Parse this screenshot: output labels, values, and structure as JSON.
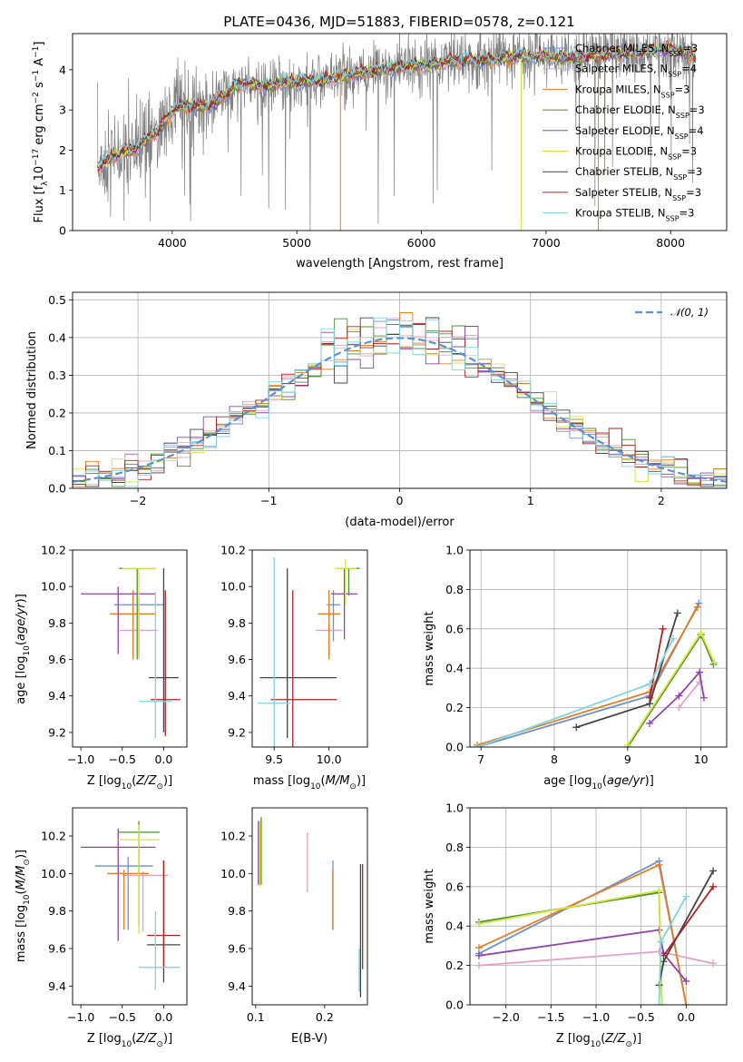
{
  "title": "PLATE=0436, MJD=51883, FIBERID=0578, z=0.121",
  "models": [
    {
      "name": "Chabrier MILES, N_SSP=3",
      "label": "Chabrier MILES, N",
      "sub": "SSP",
      "suffix": "=3",
      "color": "#6e8fd6"
    },
    {
      "name": "Salpeter MILES, N_SSP=4",
      "label": "Salpeter MILES, N",
      "sub": "SSP",
      "suffix": "=4",
      "color": "#e6a0c4"
    },
    {
      "name": "Kroupa MILES, N_SSP=3",
      "label": "Kroupa MILES, N",
      "sub": "SSP",
      "suffix": "=3",
      "color": "#e67e22"
    },
    {
      "name": "Chabrier ELODIE, N_SSP=3",
      "label": "Chabrier ELODIE, N",
      "sub": "SSP",
      "suffix": "=3",
      "color": "#4e8f2f"
    },
    {
      "name": "Salpeter ELODIE, N_SSP=4",
      "label": "Salpeter ELODIE, N",
      "sub": "SSP",
      "suffix": "=4",
      "color": "#8e44ad"
    },
    {
      "name": "Kroupa ELODIE, N_SSP=3",
      "label": "Kroupa ELODIE, N",
      "sub": "SSP",
      "suffix": "=3",
      "color": "#d4e83c"
    },
    {
      "name": "Chabrier STELIB, N_SSP=3",
      "label": "Chabrier STELIB, N",
      "sub": "SSP",
      "suffix": "=3",
      "color": "#444444"
    },
    {
      "name": "Salpeter STELIB, N_SSP=3",
      "label": "Salpeter STELIB, N",
      "sub": "SSP",
      "suffix": "=3",
      "color": "#b22222"
    },
    {
      "name": "Kroupa STELIB, N_SSP=3",
      "label": "Kroupa STELIB, N",
      "sub": "SSP",
      "suffix": "=3",
      "color": "#7fd6e0"
    }
  ],
  "chart_data": [
    {
      "id": "spectrum",
      "type": "line",
      "xlabel": "wavelength [Angstrom, rest frame]",
      "ylabel": "Flux [f_λ 10^-17 erg cm^-2 s^-1 A^-1]",
      "xlim": [
        3200,
        8450
      ],
      "ylim": [
        0,
        4.9
      ],
      "xticks": [
        4000,
        5000,
        6000,
        7000,
        8000
      ],
      "yticks": [
        0,
        1,
        2,
        3,
        4
      ],
      "data_color": "#808080",
      "data_range": [
        3400,
        8200
      ],
      "model_continuum": {
        "x": [
          3400,
          3500,
          3600,
          3700,
          3800,
          3900,
          4000,
          4100,
          4200,
          4300,
          4400,
          4500,
          4600,
          4700,
          4800,
          4900,
          5000,
          5200,
          5400,
          5600,
          5800,
          6000,
          6200,
          6400,
          6600,
          6800,
          7000,
          7200,
          7400,
          7600,
          7800,
          8000,
          8200
        ],
        "y": [
          1.55,
          1.8,
          1.95,
          2.0,
          2.3,
          2.5,
          3.0,
          3.1,
          3.1,
          3.1,
          3.3,
          3.6,
          3.65,
          3.6,
          3.6,
          3.7,
          3.7,
          3.75,
          3.85,
          3.95,
          4.05,
          4.1,
          4.2,
          4.25,
          4.25,
          4.35,
          4.3,
          4.3,
          4.35,
          4.4,
          4.45,
          4.55,
          4.35
        ]
      },
      "legend_loc": "upper right"
    },
    {
      "id": "residuals",
      "type": "histogram",
      "xlabel": "(data-model)/error",
      "ylabel": "Normed distribution",
      "xlim": [
        -2.5,
        2.5
      ],
      "ylim": [
        0,
        0.52
      ],
      "xticks": [
        -2,
        -1,
        0,
        1,
        2
      ],
      "yticks": [
        0.0,
        0.1,
        0.2,
        0.3,
        0.4,
        0.5
      ],
      "bin_width": 0.1,
      "bins_start": -2.5,
      "reference_curve": {
        "name": "N(0,1)",
        "label": "𝒩(0, 1)",
        "mu": 0,
        "sigma": 1,
        "color": "#5b8fd6"
      },
      "grid": true
    },
    {
      "id": "age_vs_Z",
      "type": "errorbar",
      "xlabel": "Z [log10(Z/Z⊙)]",
      "ylabel": "age [log10(age/yr)]",
      "xlim": [
        -1.1,
        0.28
      ],
      "ylim": [
        9.12,
        10.2
      ],
      "xticks": [
        -1.0,
        -0.5,
        0.0
      ],
      "yticks": [
        9.2,
        9.4,
        9.6,
        9.8,
        10.0,
        10.2
      ],
      "points": [
        {
          "m": 0,
          "x": -0.3,
          "xerr": [
            0.3,
            0.3
          ],
          "y": 9.9,
          "yerr": [
            0.29,
            0.04
          ]
        },
        {
          "m": 1,
          "x": -0.3,
          "xerr": [
            0.23,
            0.23
          ],
          "y": 9.76,
          "yerr": [
            0.14,
            0.14
          ]
        },
        {
          "m": 2,
          "x": -0.37,
          "xerr": [
            0.28,
            0.28
          ],
          "y": 9.85,
          "yerr": [
            0.25,
            0.13
          ]
        },
        {
          "m": 3,
          "x": -0.32,
          "xerr": [
            0.22,
            0.22
          ],
          "y": 10.1,
          "yerr": [
            0.5,
            0.0
          ]
        },
        {
          "m": 4,
          "x": -0.55,
          "xerr": [
            0.45,
            0.45
          ],
          "y": 9.96,
          "yerr": [
            0.33,
            0.04
          ]
        },
        {
          "m": 5,
          "x": -0.3,
          "xerr": [
            0.2,
            0.2
          ],
          "y": 10.1,
          "yerr": [
            0.5,
            0.0
          ]
        },
        {
          "m": 6,
          "x": 0.0,
          "xerr": [
            0.18,
            0.18
          ],
          "y": 9.5,
          "yerr": [
            0.3,
            0.6
          ]
        },
        {
          "m": 7,
          "x": 0.02,
          "xerr": [
            0.18,
            0.18
          ],
          "y": 9.38,
          "yerr": [
            0.2,
            0.6
          ]
        },
        {
          "m": 8,
          "x": -0.1,
          "xerr": [
            0.2,
            0.2
          ],
          "y": 9.37,
          "yerr": [
            0.2,
            0.6
          ]
        }
      ]
    },
    {
      "id": "age_vs_mass",
      "type": "errorbar",
      "xlabel": "mass [log10(M/M⊙)]",
      "ylabel": "",
      "xlim": [
        9.3,
        10.35
      ],
      "ylim": [
        9.12,
        10.2
      ],
      "xticks": [
        9.5,
        10.0
      ],
      "yticks": [
        9.2,
        9.4,
        9.6,
        9.8,
        10.0,
        10.2
      ],
      "points": [
        {
          "m": 0,
          "x": 10.04,
          "xerr": [
            0.06,
            0.06
          ],
          "y": 9.9,
          "yerr": [
            0.2,
            0.08
          ]
        },
        {
          "m": 1,
          "x": 10.0,
          "xerr": [
            0.12,
            0.12
          ],
          "y": 9.76,
          "yerr": [
            0.14,
            0.14
          ]
        },
        {
          "m": 2,
          "x": 10.0,
          "xerr": [
            0.1,
            0.1
          ],
          "y": 9.85,
          "yerr": [
            0.25,
            0.13
          ]
        },
        {
          "m": 3,
          "x": 10.18,
          "xerr": [
            0.1,
            0.1
          ],
          "y": 10.1,
          "yerr": [
            0.15,
            0.0
          ]
        },
        {
          "m": 4,
          "x": 10.14,
          "xerr": [
            0.12,
            0.12
          ],
          "y": 9.96,
          "yerr": [
            0.25,
            0.14
          ]
        },
        {
          "m": 5,
          "x": 10.15,
          "xerr": [
            0.1,
            0.1
          ],
          "y": 10.1,
          "yerr": [
            0.2,
            0.05
          ]
        },
        {
          "m": 6,
          "x": 9.62,
          "xerr": [
            0.25,
            0.45
          ],
          "y": 9.5,
          "yerr": [
            0.33,
            0.6
          ]
        },
        {
          "m": 7,
          "x": 9.67,
          "xerr": [
            0.2,
            0.4
          ],
          "y": 9.38,
          "yerr": [
            0.3,
            0.6
          ]
        },
        {
          "m": 8,
          "x": 9.5,
          "xerr": [
            0.15,
            0.15
          ],
          "y": 9.36,
          "yerr": [
            0.3,
            0.8
          ]
        }
      ]
    },
    {
      "id": "mass_weight_vs_age",
      "type": "line",
      "xlabel": "age [log10(age/yr)]",
      "ylabel": "mass weight",
      "xlim": [
        6.85,
        10.35
      ],
      "ylim": [
        0,
        1.0
      ],
      "xticks": [
        7,
        8,
        9,
        10
      ],
      "yticks": [
        0.0,
        0.2,
        0.4,
        0.6,
        0.8,
        1.0
      ],
      "grid": true,
      "series": [
        {
          "m": 0,
          "x": [
            6.95,
            9.3,
            9.97
          ],
          "y": [
            0.0,
            0.26,
            0.73
          ]
        },
        {
          "m": 1,
          "x": [
            9.7,
            9.98
          ],
          "y": [
            0.2,
            0.33
          ]
        },
        {
          "m": 2,
          "x": [
            6.95,
            9.3,
            9.95
          ],
          "y": [
            0.01,
            0.28,
            0.71
          ]
        },
        {
          "m": 3,
          "x": [
            9.0,
            10.0,
            10.17
          ],
          "y": [
            0.0,
            0.57,
            0.42
          ]
        },
        {
          "m": 4,
          "x": [
            9.3,
            9.7,
            9.98,
            10.04
          ],
          "y": [
            0.12,
            0.26,
            0.38,
            0.25
          ]
        },
        {
          "m": 5,
          "x": [
            9.0,
            10.0,
            10.18
          ],
          "y": [
            0.01,
            0.58,
            0.43
          ]
        },
        {
          "m": 6,
          "x": [
            8.3,
            9.3,
            9.68
          ],
          "y": [
            0.1,
            0.22,
            0.68
          ]
        },
        {
          "m": 7,
          "x": [
            9.3,
            9.48
          ],
          "y": [
            0.25,
            0.6
          ]
        },
        {
          "m": 8,
          "x": [
            6.95,
            9.3,
            9.62
          ],
          "y": [
            0.0,
            0.32,
            0.55
          ]
        }
      ]
    },
    {
      "id": "mass_vs_Z",
      "type": "errorbar",
      "xlabel": "Z [log10(Z/Z⊙)]",
      "ylabel": "mass [log10(M/M⊙)]",
      "xlim": [
        -1.1,
        0.28
      ],
      "ylim": [
        9.3,
        10.35
      ],
      "xticks": [
        -1.0,
        -0.5,
        0.0
      ],
      "yticks": [
        9.4,
        9.6,
        9.8,
        10.0,
        10.2
      ],
      "points": [
        {
          "m": 0,
          "x": -0.43,
          "xerr": [
            0.4,
            0.3
          ],
          "y": 10.04,
          "yerr": [
            0.34,
            0.05
          ]
        },
        {
          "m": 1,
          "x": -0.25,
          "xerr": [
            0.25,
            0.3
          ],
          "y": 9.99,
          "yerr": [
            0.3,
            0.02
          ]
        },
        {
          "m": 2,
          "x": -0.48,
          "xerr": [
            0.2,
            0.3
          ],
          "y": 10.0,
          "yerr": [
            0.3,
            0.02
          ]
        },
        {
          "m": 3,
          "x": -0.3,
          "xerr": [
            0.25,
            0.25
          ],
          "y": 10.22,
          "yerr": [
            0.5,
            0.06
          ]
        },
        {
          "m": 4,
          "x": -0.55,
          "xerr": [
            0.45,
            0.45
          ],
          "y": 10.14,
          "yerr": [
            0.5,
            0.1
          ]
        },
        {
          "m": 5,
          "x": -0.3,
          "xerr": [
            0.25,
            0.25
          ],
          "y": 10.18,
          "yerr": [
            0.5,
            0.08
          ]
        },
        {
          "m": 6,
          "x": 0.0,
          "xerr": [
            0.2,
            0.2
          ],
          "y": 9.62,
          "yerr": [
            0.2,
            0.45
          ]
        },
        {
          "m": 7,
          "x": 0.0,
          "xerr": [
            0.2,
            0.2
          ],
          "y": 9.67,
          "yerr": [
            0.18,
            0.4
          ]
        },
        {
          "m": 8,
          "x": -0.1,
          "xerr": [
            0.2,
            0.3
          ],
          "y": 9.5,
          "yerr": [
            0.12,
            0.3
          ]
        }
      ]
    },
    {
      "id": "mass_vs_EBV",
      "type": "errorbar",
      "xlabel": "E(B-V)",
      "ylabel": "",
      "xlim": [
        0.095,
        0.262
      ],
      "ylim": [
        9.3,
        10.35
      ],
      "xticks": [
        0.1,
        0.2
      ],
      "yticks": [
        9.4,
        9.6,
        9.8,
        10.0,
        10.2
      ],
      "points": [
        {
          "m": 0,
          "x": 0.212,
          "xerr": [
            0,
            0
          ],
          "y": 10.04,
          "yerr": [
            0.34,
            0.03
          ]
        },
        {
          "m": 1,
          "x": 0.175,
          "xerr": [
            0,
            0
          ],
          "y": 10.0,
          "yerr": [
            0.1,
            0.22
          ]
        },
        {
          "m": 2,
          "x": 0.212,
          "xerr": [
            0,
            0
          ],
          "y": 10.0,
          "yerr": [
            0.3,
            0.02
          ]
        },
        {
          "m": 3,
          "x": 0.108,
          "xerr": [
            0,
            0
          ],
          "y": 10.22,
          "yerr": [
            0.28,
            0.08
          ]
        },
        {
          "m": 4,
          "x": 0.104,
          "xerr": [
            0,
            0
          ],
          "y": 10.14,
          "yerr": [
            0.2,
            0.14
          ]
        },
        {
          "m": 5,
          "x": 0.106,
          "xerr": [
            0,
            0
          ],
          "y": 10.18,
          "yerr": [
            0.25,
            0.1
          ]
        },
        {
          "m": 6,
          "x": 0.252,
          "xerr": [
            0,
            0
          ],
          "y": 9.62,
          "yerr": [
            0.28,
            0.43
          ]
        },
        {
          "m": 7,
          "x": 0.255,
          "xerr": [
            0,
            0
          ],
          "y": 9.67,
          "yerr": [
            0.18,
            0.38
          ]
        },
        {
          "m": 8,
          "x": 0.25,
          "xerr": [
            0,
            0
          ],
          "y": 9.5,
          "yerr": [
            0.13,
            0.1
          ]
        }
      ]
    },
    {
      "id": "mass_weight_vs_Z",
      "type": "line",
      "xlabel": "Z [log10(Z/Z⊙)]",
      "ylabel": "mass weight",
      "xlim": [
        -2.4,
        0.45
      ],
      "ylim": [
        0,
        1.0
      ],
      "xticks": [
        -2.0,
        -1.5,
        -1.0,
        -0.5,
        0.0
      ],
      "yticks": [
        0.0,
        0.2,
        0.4,
        0.6,
        0.8,
        1.0
      ],
      "grid": true,
      "series": [
        {
          "m": 0,
          "x": [
            -2.3,
            -0.3,
            0.0
          ],
          "y": [
            0.26,
            0.73,
            0.0
          ]
        },
        {
          "m": 1,
          "x": [
            -2.3,
            -0.3,
            0.3
          ],
          "y": [
            0.2,
            0.27,
            0.21
          ]
        },
        {
          "m": 2,
          "x": [
            -2.3,
            -0.3,
            0.0
          ],
          "y": [
            0.29,
            0.71,
            0.0
          ]
        },
        {
          "m": 3,
          "x": [
            -2.3,
            -0.3,
            -0.27
          ],
          "y": [
            0.42,
            0.57,
            0.0
          ]
        },
        {
          "m": 4,
          "x": [
            -2.3,
            -0.3,
            -0.25,
            0.0
          ],
          "y": [
            0.25,
            0.38,
            0.26,
            0.12
          ]
        },
        {
          "m": 5,
          "x": [
            -2.3,
            -0.3,
            -0.27
          ],
          "y": [
            0.41,
            0.58,
            0.0
          ]
        },
        {
          "m": 6,
          "x": [
            -0.3,
            -0.25,
            0.3
          ],
          "y": [
            0.1,
            0.22,
            0.68
          ]
        },
        {
          "m": 7,
          "x": [
            -0.25,
            0.3
          ],
          "y": [
            0.25,
            0.6
          ]
        },
        {
          "m": 8,
          "x": [
            -0.3,
            -0.28,
            0.0
          ],
          "y": [
            0.0,
            0.32,
            0.55
          ]
        }
      ]
    }
  ]
}
